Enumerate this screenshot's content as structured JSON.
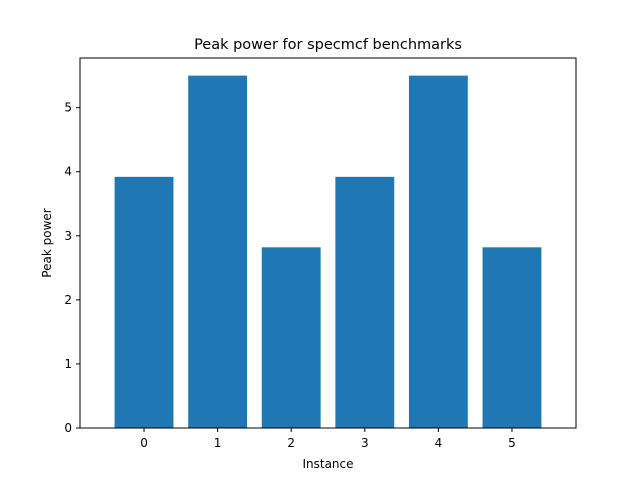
{
  "chart_data": {
    "type": "bar",
    "title": "Peak power for specmcf benchmarks",
    "xlabel": "Instance",
    "ylabel": "Peak power",
    "categories": [
      "0",
      "1",
      "2",
      "3",
      "4",
      "5"
    ],
    "values": [
      3.92,
      5.5,
      2.82,
      3.92,
      5.5,
      2.82
    ],
    "ylim": [
      0,
      5.775
    ],
    "yticks": [
      0,
      1,
      2,
      3,
      4,
      5
    ],
    "bar_color": "#1f77b4",
    "grid": false,
    "legend": "none"
  }
}
